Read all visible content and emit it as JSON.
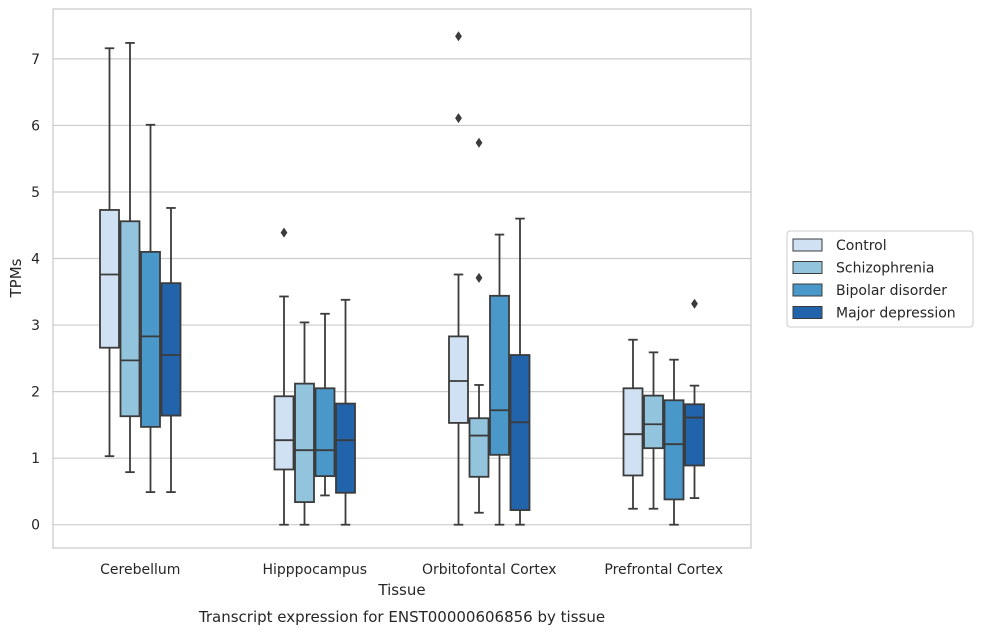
{
  "caption": "Transcript expression for ENST00000606856 by tissue",
  "chart_data": {
    "type": "box",
    "xlabel": "Tissue",
    "ylabel": "TPMs",
    "ylim": [
      -0.35,
      7.75
    ],
    "yticks": [
      0,
      1,
      2,
      3,
      4,
      5,
      6,
      7
    ],
    "grid": "horizontal",
    "legend_position": "right",
    "categories": [
      "Cerebellum",
      "Hipppocampus",
      "Orbitofontal Cortex",
      "Prefrontal Cortex"
    ],
    "series": [
      {
        "name": "Control",
        "color": "#cfe1f2",
        "boxes": [
          {
            "whisker_low": 1.03,
            "q1": 2.66,
            "median": 3.76,
            "q3": 4.73,
            "whisker_high": 7.16,
            "outliers": []
          },
          {
            "whisker_low": 0.0,
            "q1": 0.83,
            "median": 1.27,
            "q3": 1.93,
            "whisker_high": 3.43,
            "outliers": [
              4.39
            ]
          },
          {
            "whisker_low": 0.0,
            "q1": 1.53,
            "median": 2.16,
            "q3": 2.83,
            "whisker_high": 3.76,
            "outliers": [
              7.34,
              6.11
            ]
          },
          {
            "whisker_low": 0.24,
            "q1": 0.74,
            "median": 1.36,
            "q3": 2.05,
            "whisker_high": 2.78,
            "outliers": []
          }
        ]
      },
      {
        "name": "Schizophrenia",
        "color": "#93c4de",
        "boxes": [
          {
            "whisker_low": 0.79,
            "q1": 1.63,
            "median": 2.47,
            "q3": 4.56,
            "whisker_high": 7.24,
            "outliers": []
          },
          {
            "whisker_low": 0.0,
            "q1": 0.34,
            "median": 1.12,
            "q3": 2.12,
            "whisker_high": 3.04,
            "outliers": []
          },
          {
            "whisker_low": 0.18,
            "q1": 0.72,
            "median": 1.34,
            "q3": 1.6,
            "whisker_high": 2.1,
            "outliers": [
              5.74,
              3.71
            ]
          },
          {
            "whisker_low": 0.24,
            "q1": 1.15,
            "median": 1.51,
            "q3": 1.94,
            "whisker_high": 2.59,
            "outliers": []
          }
        ]
      },
      {
        "name": "Bipolar disorder",
        "color": "#4a98c9",
        "boxes": [
          {
            "whisker_low": 0.49,
            "q1": 1.47,
            "median": 2.83,
            "q3": 4.1,
            "whisker_high": 6.01,
            "outliers": []
          },
          {
            "whisker_low": 0.44,
            "q1": 0.73,
            "median": 1.12,
            "q3": 2.05,
            "whisker_high": 3.17,
            "outliers": []
          },
          {
            "whisker_low": 0.0,
            "q1": 1.05,
            "median": 1.72,
            "q3": 3.44,
            "whisker_high": 4.36,
            "outliers": []
          },
          {
            "whisker_low": 0.0,
            "q1": 0.38,
            "median": 1.21,
            "q3": 1.87,
            "whisker_high": 2.48,
            "outliers": []
          }
        ]
      },
      {
        "name": "Major depression",
        "color": "#2164ab",
        "boxes": [
          {
            "whisker_low": 0.49,
            "q1": 1.64,
            "median": 2.55,
            "q3": 3.63,
            "whisker_high": 4.76,
            "outliers": []
          },
          {
            "whisker_low": 0.0,
            "q1": 0.48,
            "median": 1.27,
            "q3": 1.82,
            "whisker_high": 3.38,
            "outliers": []
          },
          {
            "whisker_low": 0.0,
            "q1": 0.22,
            "median": 1.54,
            "q3": 2.55,
            "whisker_high": 4.6,
            "outliers": []
          },
          {
            "whisker_low": 0.4,
            "q1": 0.89,
            "median": 1.61,
            "q3": 1.81,
            "whisker_high": 2.09,
            "outliers": [
              3.32
            ]
          }
        ]
      }
    ]
  }
}
